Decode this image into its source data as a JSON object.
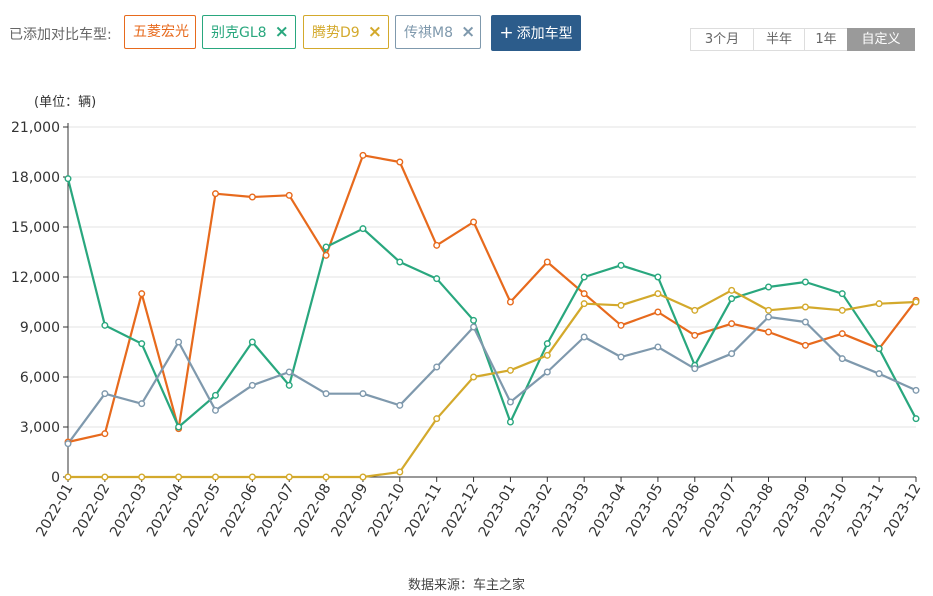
{
  "header": {
    "added_label": "已添加对比车型:",
    "tags": [
      {
        "name": "五菱宏光",
        "color": "#e76a1d",
        "removable": false
      },
      {
        "name": "别克GL8",
        "color": "#29a77e",
        "removable": true
      },
      {
        "name": "腾势D9",
        "color": "#d3a92c",
        "removable": true
      },
      {
        "name": "传祺M8",
        "color": "#7f99ad",
        "removable": true
      }
    ],
    "remove_icon": "×",
    "add_button": {
      "icon": "+",
      "label": "添加车型"
    },
    "ranges": [
      "3个月",
      "半年",
      "1年",
      "自定义"
    ],
    "active_range": "自定义"
  },
  "chart_data": {
    "type": "line",
    "unit_label": "(单位：辆)",
    "source": "数据来源：车主之家",
    "ylim": [
      0,
      21000
    ],
    "yticks": [
      "0",
      "3,000",
      "6,000",
      "9,000",
      "12,000",
      "15,000",
      "18,000",
      "21,000"
    ],
    "grid": true,
    "categories": [
      "2022-01",
      "2022-02",
      "2022-03",
      "2022-04",
      "2022-05",
      "2022-06",
      "2022-07",
      "2022-08",
      "2022-09",
      "2022-10",
      "2022-11",
      "2022-12",
      "2023-01",
      "2023-02",
      "2023-03",
      "2023-04",
      "2023-05",
      "2023-06",
      "2023-07",
      "2023-08",
      "2023-09",
      "2023-10",
      "2023-11",
      "2023-12"
    ],
    "series": [
      {
        "name": "五菱宏光",
        "color": "#e76a1d",
        "values": [
          2100,
          2600,
          11000,
          2900,
          17000,
          16800,
          16900,
          13300,
          19300,
          18900,
          13900,
          15300,
          10500,
          12900,
          11000,
          9100,
          9900,
          8500,
          9200,
          8700,
          7900,
          8600,
          7700,
          10600
        ]
      },
      {
        "name": "别克GL8",
        "color": "#29a77e",
        "values": [
          17900,
          9100,
          8000,
          3000,
          4900,
          8100,
          5500,
          13800,
          14900,
          12900,
          11900,
          9400,
          3300,
          8000,
          12000,
          12700,
          12000,
          6700,
          10700,
          11400,
          11700,
          11000,
          7700,
          3500
        ]
      },
      {
        "name": "腾势D9",
        "color": "#d3a92c",
        "values": [
          0,
          0,
          0,
          0,
          0,
          0,
          0,
          0,
          0,
          300,
          3500,
          6000,
          6400,
          7300,
          10400,
          10300,
          11000,
          10000,
          11200,
          10000,
          10200,
          10000,
          10400,
          10500
        ]
      },
      {
        "name": "传祺M8",
        "color": "#7f99ad",
        "values": [
          2000,
          5000,
          4400,
          8100,
          4000,
          5500,
          6300,
          5000,
          5000,
          4300,
          6600,
          9000,
          4500,
          6300,
          8400,
          7200,
          7800,
          6500,
          7400,
          9600,
          9300,
          7100,
          6200,
          5200
        ]
      }
    ]
  }
}
